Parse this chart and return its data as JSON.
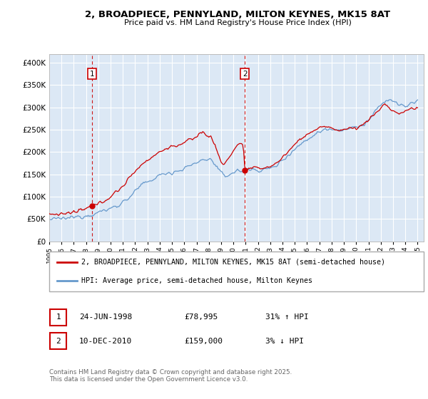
{
  "title1": "2, BROADPIECE, PENNYLAND, MILTON KEYNES, MK15 8AT",
  "title2": "Price paid vs. HM Land Registry's House Price Index (HPI)",
  "sale1_date": 1998.49,
  "sale1_price": 78995,
  "sale1_label": "1",
  "sale2_date": 2010.94,
  "sale2_price": 159000,
  "sale2_label": "2",
  "legend_line1": "2, BROADPIECE, PENNYLAND, MILTON KEYNES, MK15 8AT (semi-detached house)",
  "legend_line2": "HPI: Average price, semi-detached house, Milton Keynes",
  "table_row1": [
    "1",
    "24-JUN-1998",
    "£78,995",
    "31% ↑ HPI"
  ],
  "table_row2": [
    "2",
    "10-DEC-2010",
    "£159,000",
    "3% ↓ HPI"
  ],
  "footer": "Contains HM Land Registry data © Crown copyright and database right 2025.\nThis data is licensed under the Open Government Licence v3.0.",
  "property_color": "#cc0000",
  "hpi_color": "#6699cc",
  "background_color": "#dce8f5",
  "ylim": [
    0,
    420000
  ],
  "xlim_start": 1995.0,
  "xlim_end": 2025.5
}
